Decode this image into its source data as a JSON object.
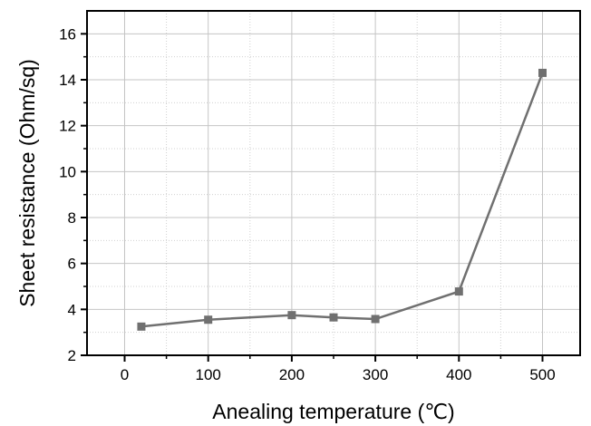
{
  "chart_data": {
    "type": "line",
    "xlabel": "Anealing temperature (℃)",
    "ylabel": "Sheet resistance (Ohm/sq)",
    "xlim": [
      -45,
      545
    ],
    "ylim": [
      2,
      17
    ],
    "xticks": [
      0,
      100,
      200,
      300,
      400,
      500
    ],
    "yticks": [
      2,
      4,
      6,
      8,
      10,
      12,
      14,
      16
    ],
    "grid": true,
    "legend": "none",
    "series": [
      {
        "x": [
          20,
          100,
          200,
          250,
          300,
          400,
          500
        ],
        "y": [
          3.25,
          3.55,
          3.75,
          3.65,
          3.58,
          4.78,
          14.3
        ],
        "color": "#707070",
        "marker": "square"
      }
    ]
  }
}
